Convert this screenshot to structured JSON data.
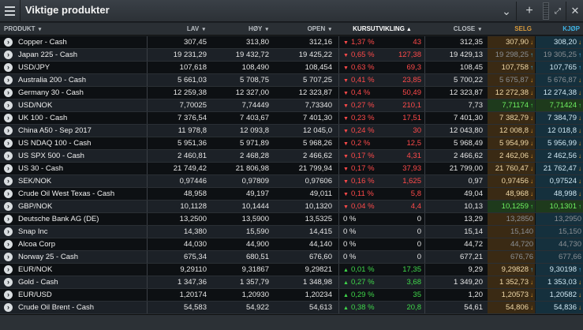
{
  "window": {
    "title": "Viktige produkter"
  },
  "columns": {
    "product": "PRODUKT",
    "low": "LAV",
    "high": "HØY",
    "open": "OPEN",
    "change": "KURSUTVIKLING",
    "close": "CLOSE",
    "sell": "SELG",
    "buy": "KJØP"
  },
  "colors": {
    "negative": "#ff4a4a",
    "positive": "#3fd84a",
    "sell_header": "#d79a3c",
    "buy_header": "#3fb3e4"
  },
  "rows": [
    {
      "name": "Copper - Cash",
      "low": "307,45",
      "high": "313,80",
      "open": "312,16",
      "dir": "down",
      "pct": "1,37 %",
      "abs": "43",
      "close": "312,35",
      "sell": "307,90",
      "buy": "308,20",
      "tick": "down",
      "state": "normal"
    },
    {
      "name": "Japan 225 - Cash",
      "low": "19 231,29",
      "high": "19 432,72",
      "open": "19 425,22",
      "dir": "down",
      "pct": "0,65 %",
      "abs": "127,38",
      "close": "19 429,13",
      "sell": "19 298,25",
      "buy": "19 305,25",
      "tick": "upblue",
      "state": "dim"
    },
    {
      "name": "USD/JPY",
      "low": "107,618",
      "high": "108,490",
      "open": "108,454",
      "dir": "down",
      "pct": "0,63 %",
      "abs": "69,3",
      "close": "108,45",
      "sell": "107,758",
      "buy": "107,765",
      "tick": "upblue",
      "state": "normal"
    },
    {
      "name": "Australia 200 - Cash",
      "low": "5 661,03",
      "high": "5 708,75",
      "open": "5 707,25",
      "dir": "down",
      "pct": "0,41 %",
      "abs": "23,85",
      "close": "5 700,22",
      "sell": "5 675,87",
      "buy": "5 676,87",
      "tick": "down",
      "state": "dim"
    },
    {
      "name": "Germany 30 - Cash",
      "low": "12 259,38",
      "high": "12 327,00",
      "open": "12 323,87",
      "dir": "down",
      "pct": "0,4 %",
      "abs": "50,49",
      "close": "12 323,87",
      "sell": "12 272,38",
      "buy": "12 274,38",
      "tick": "down",
      "state": "normal"
    },
    {
      "name": "USD/NOK",
      "low": "7,70025",
      "high": "7,74449",
      "open": "7,73340",
      "dir": "down",
      "pct": "0,27 %",
      "abs": "210,1",
      "close": "7,73",
      "sell": "7,71174",
      "buy": "7,71424",
      "tick": "up",
      "state": "up"
    },
    {
      "name": "UK 100 - Cash",
      "low": "7 376,54",
      "high": "7 403,67",
      "open": "7 401,30",
      "dir": "down",
      "pct": "0,23 %",
      "abs": "17,51",
      "close": "7 401,30",
      "sell": "7 382,79",
      "buy": "7 384,79",
      "tick": "down",
      "state": "normal"
    },
    {
      "name": "China A50 - Sep 2017",
      "low": "11 978,8",
      "high": "12 093,8",
      "open": "12 045,0",
      "dir": "down",
      "pct": "0,24 %",
      "abs": "30",
      "close": "12 043,80",
      "sell": "12 008,8",
      "buy": "12 018,8",
      "tick": "down",
      "state": "normal"
    },
    {
      "name": "US NDAQ 100 - Cash",
      "low": "5 951,36",
      "high": "5 971,89",
      "open": "5 968,26",
      "dir": "down",
      "pct": "0,2 %",
      "abs": "12,5",
      "close": "5 968,49",
      "sell": "5 954,99",
      "buy": "5 956,99",
      "tick": "down",
      "state": "normal"
    },
    {
      "name": "US SPX 500 - Cash",
      "low": "2 460,81",
      "high": "2 468,28",
      "open": "2 466,62",
      "dir": "down",
      "pct": "0,17 %",
      "abs": "4,31",
      "close": "2 466,62",
      "sell": "2 462,06",
      "buy": "2 462,56",
      "tick": "down",
      "state": "normal"
    },
    {
      "name": "US 30 - Cash",
      "low": "21 749,42",
      "high": "21 806,98",
      "open": "21 799,94",
      "dir": "down",
      "pct": "0,17 %",
      "abs": "37,93",
      "close": "21 799,00",
      "sell": "21 760,47",
      "buy": "21 762,47",
      "tick": "down",
      "state": "normal"
    },
    {
      "name": "SEK/NOK",
      "low": "0,97446",
      "high": "0,97809",
      "open": "0,97606",
      "dir": "down",
      "pct": "0,16 %",
      "abs": "1,625",
      "close": "0,97",
      "sell": "0,97456",
      "buy": "0,97524",
      "tick": "down",
      "state": "normal"
    },
    {
      "name": "Crude Oil West Texas - Cash",
      "low": "48,958",
      "high": "49,197",
      "open": "49,011",
      "dir": "down",
      "pct": "0,11 %",
      "abs": "5,8",
      "close": "49,04",
      "sell": "48,968",
      "buy": "48,998",
      "tick": "down",
      "state": "normal"
    },
    {
      "name": "GBP/NOK",
      "low": "10,1128",
      "high": "10,1444",
      "open": "10,1320",
      "dir": "down",
      "pct": "0,04 %",
      "abs": "4,4",
      "close": "10,13",
      "sell": "10,1259",
      "buy": "10,1301",
      "tick": "up",
      "state": "up"
    },
    {
      "name": "Deutsche Bank AG (DE)",
      "low": "13,2500",
      "high": "13,5900",
      "open": "13,5325",
      "dir": "none",
      "pct": "0 %",
      "abs": "0",
      "close": "13,29",
      "sell": "13,2850",
      "buy": "13,2950",
      "tick": "",
      "state": "dim"
    },
    {
      "name": "Snap Inc",
      "low": "14,380",
      "high": "15,590",
      "open": "14,415",
      "dir": "none",
      "pct": "0 %",
      "abs": "0",
      "close": "15,14",
      "sell": "15,140",
      "buy": "15,150",
      "tick": "",
      "state": "dim"
    },
    {
      "name": "Alcoa Corp",
      "low": "44,030",
      "high": "44,900",
      "open": "44,140",
      "dir": "none",
      "pct": "0 %",
      "abs": "0",
      "close": "44,72",
      "sell": "44,720",
      "buy": "44,730",
      "tick": "",
      "state": "dim"
    },
    {
      "name": "Norway 25 - Cash",
      "low": "675,34",
      "high": "680,51",
      "open": "676,60",
      "dir": "none",
      "pct": "0 %",
      "abs": "0",
      "close": "677,21",
      "sell": "676,76",
      "buy": "677,66",
      "tick": "",
      "state": "dim"
    },
    {
      "name": "EUR/NOK",
      "low": "9,29110",
      "high": "9,31867",
      "open": "9,29821",
      "dir": "up",
      "pct": "0,01 %",
      "abs": "17,35",
      "close": "9,29",
      "sell": "9,29828",
      "buy": "9,30198",
      "tick": "upblue",
      "state": "normal"
    },
    {
      "name": "Gold - Cash",
      "low": "1 347,36",
      "high": "1 357,79",
      "open": "1 348,98",
      "dir": "up",
      "pct": "0,27 %",
      "abs": "3,68",
      "close": "1 349,20",
      "sell": "1 352,73",
      "buy": "1 353,03",
      "tick": "down",
      "state": "normal"
    },
    {
      "name": "EUR/USD",
      "low": "1,20174",
      "high": "1,20930",
      "open": "1,20234",
      "dir": "up",
      "pct": "0,29 %",
      "abs": "35",
      "close": "1,20",
      "sell": "1,20573",
      "buy": "1,20582",
      "tick": "down",
      "state": "normal"
    },
    {
      "name": "Crude Oil Brent - Cash",
      "low": "54,583",
      "high": "54,922",
      "open": "54,613",
      "dir": "up",
      "pct": "0,38 %",
      "abs": "20,8",
      "close": "54,61",
      "sell": "54,806",
      "buy": "54,836",
      "tick": "down",
      "state": "normal"
    }
  ]
}
